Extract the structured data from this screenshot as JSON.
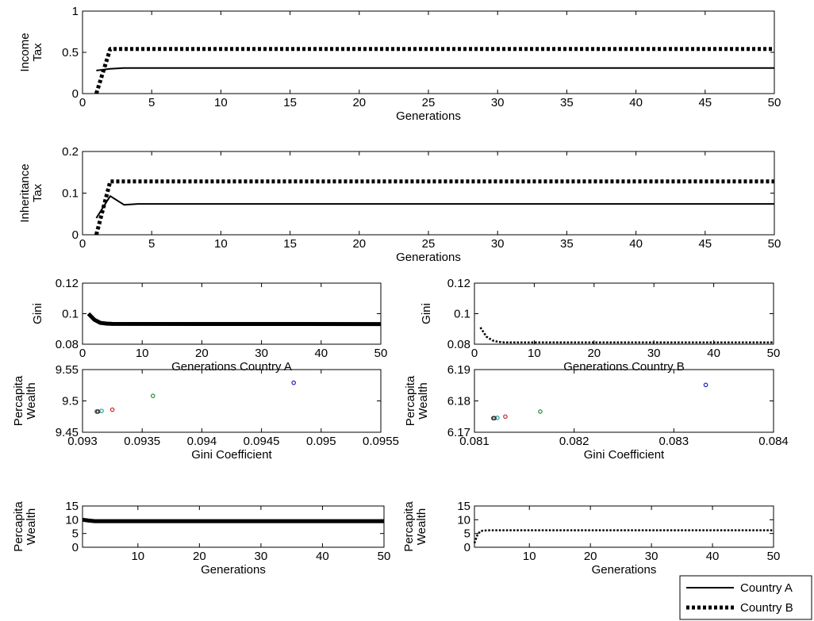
{
  "legend": {
    "entries": [
      {
        "label": "Country A",
        "style": "solid"
      },
      {
        "label": "Country B",
        "style": "dotted"
      }
    ]
  },
  "chart_data": [
    {
      "id": "income-tax",
      "type": "line",
      "xlabel": "Generations",
      "ylabel": [
        "Income",
        "Tax"
      ],
      "xlim": [
        0,
        50
      ],
      "ylim": [
        0,
        1
      ],
      "xticks": [
        0,
        5,
        10,
        15,
        20,
        25,
        30,
        35,
        40,
        45,
        50
      ],
      "yticks": [
        0,
        0.5,
        1
      ],
      "series": [
        {
          "style": "solid",
          "x": [
            1,
            2,
            3,
            4,
            50
          ],
          "y": [
            0.28,
            0.3,
            0.31,
            0.31,
            0.31
          ]
        },
        {
          "style": "dotted",
          "x": [
            1,
            2,
            50
          ],
          "y": [
            0.0,
            0.54,
            0.54
          ]
        }
      ]
    },
    {
      "id": "inheritance-tax",
      "type": "line",
      "xlabel": "Generations",
      "ylabel": [
        "Inheritance",
        "Tax"
      ],
      "xlim": [
        0,
        50
      ],
      "ylim": [
        0,
        0.2
      ],
      "xticks": [
        0,
        5,
        10,
        15,
        20,
        25,
        30,
        35,
        40,
        45,
        50
      ],
      "yticks": [
        0,
        0.1,
        0.2
      ],
      "series": [
        {
          "style": "solid",
          "x": [
            1,
            2,
            3,
            4,
            5,
            50
          ],
          "y": [
            0.04,
            0.093,
            0.072,
            0.074,
            0.074,
            0.074
          ]
        },
        {
          "style": "dotted",
          "x": [
            1,
            2,
            50
          ],
          "y": [
            0.0,
            0.128,
            0.128
          ]
        }
      ]
    },
    {
      "id": "gini-a",
      "type": "line",
      "xlabel": "Generations Country A",
      "ylabel": [
        "Gini"
      ],
      "xlim": [
        0,
        50
      ],
      "ylim": [
        0.08,
        0.12
      ],
      "xticks": [
        0,
        10,
        20,
        30,
        40,
        50
      ],
      "yticks": [
        0.08,
        0.1,
        0.12
      ],
      "series": [
        {
          "style": "thick",
          "x": [
            1,
            2,
            3,
            4,
            5,
            50
          ],
          "y": [
            0.1,
            0.096,
            0.094,
            0.0935,
            0.0933,
            0.0932
          ]
        }
      ]
    },
    {
      "id": "gini-b",
      "type": "line",
      "xlabel": "Generations Country B",
      "ylabel": [
        "Gini"
      ],
      "xlim": [
        0,
        50
      ],
      "ylim": [
        0.08,
        0.12
      ],
      "xticks": [
        0,
        10,
        20,
        30,
        40,
        50
      ],
      "yticks": [
        0.08,
        0.1,
        0.12
      ],
      "series": [
        {
          "style": "dotted-thin",
          "x": [
            1,
            2,
            3,
            4,
            5,
            50
          ],
          "y": [
            0.091,
            0.085,
            0.0825,
            0.0815,
            0.0812,
            0.0812
          ]
        }
      ]
    },
    {
      "id": "scatter-a",
      "type": "scatter",
      "xlabel": "Gini Coefficient",
      "ylabel": [
        "Percapita",
        "Wealth"
      ],
      "xlim": [
        0.093,
        0.0955
      ],
      "ylim": [
        9.45,
        9.55
      ],
      "xticks": [
        0.093,
        0.0935,
        0.094,
        0.0945,
        0.095,
        0.0955
      ],
      "yticks": [
        9.45,
        9.5,
        9.55
      ],
      "points": [
        {
          "x": 0.09477,
          "y": 9.529,
          "color": "#1f1fcc"
        },
        {
          "x": 0.09359,
          "y": 9.508,
          "color": "#2e8b2e"
        },
        {
          "x": 0.09325,
          "y": 9.486,
          "color": "#d42020"
        },
        {
          "x": 0.09316,
          "y": 9.484,
          "color": "#20a0a0"
        },
        {
          "x": 0.09313,
          "y": 9.483,
          "color": "#333333"
        },
        {
          "x": 0.09312,
          "y": 9.483,
          "color": "#333333"
        }
      ]
    },
    {
      "id": "scatter-b",
      "type": "scatter",
      "xlabel": "Gini Coefficient",
      "ylabel": [
        "Percapita",
        "Wealth"
      ],
      "xlim": [
        0.081,
        0.084
      ],
      "ylim": [
        6.17,
        6.19
      ],
      "xticks": [
        0.081,
        0.082,
        0.083,
        0.084
      ],
      "yticks": [
        6.17,
        6.18,
        6.19
      ],
      "points": [
        {
          "x": 0.08332,
          "y": 6.1851,
          "color": "#1f1fcc"
        },
        {
          "x": 0.08166,
          "y": 6.1766,
          "color": "#2e8b2e"
        },
        {
          "x": 0.08131,
          "y": 6.175,
          "color": "#d42020"
        },
        {
          "x": 0.08123,
          "y": 6.1746,
          "color": "#20a0a0"
        },
        {
          "x": 0.0812,
          "y": 6.1745,
          "color": "#333333"
        },
        {
          "x": 0.08119,
          "y": 6.1745,
          "color": "#333333"
        }
      ]
    },
    {
      "id": "wealth-a",
      "type": "line",
      "xlabel": "Generations",
      "ylabel": [
        "Percapita",
        "Wealth"
      ],
      "xlim": [
        1,
        50
      ],
      "ylim": [
        0,
        15
      ],
      "xticks": [
        10,
        20,
        30,
        40,
        50
      ],
      "yticks": [
        0,
        5,
        10,
        15
      ],
      "series": [
        {
          "style": "thick",
          "x": [
            1,
            2,
            3,
            4,
            50
          ],
          "y": [
            10.0,
            9.7,
            9.5,
            9.48,
            9.48
          ]
        }
      ]
    },
    {
      "id": "wealth-b",
      "type": "line",
      "xlabel": "Generations",
      "ylabel": [
        "Percapita",
        "Wealth"
      ],
      "xlim": [
        1,
        50
      ],
      "ylim": [
        0,
        15
      ],
      "xticks": [
        10,
        20,
        30,
        40,
        50
      ],
      "yticks": [
        0,
        5,
        10,
        15
      ],
      "series": [
        {
          "style": "dotted-thin",
          "x": [
            1,
            1.5,
            2,
            3,
            4,
            50
          ],
          "y": [
            1.5,
            4.5,
            5.9,
            6.15,
            6.17,
            6.17
          ]
        }
      ]
    }
  ]
}
